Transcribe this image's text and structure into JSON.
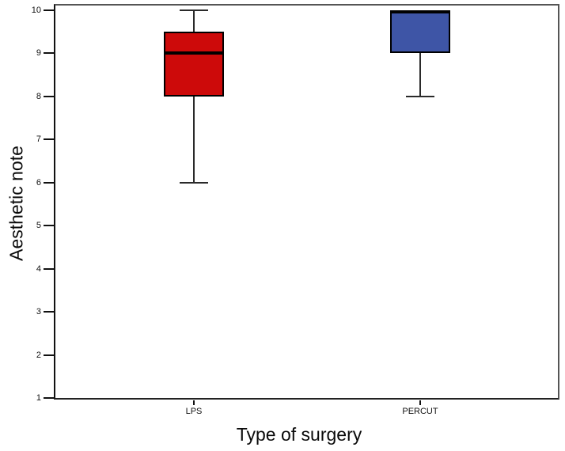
{
  "chart_data": {
    "type": "boxplot",
    "title": "",
    "xlabel": "Type of surgery",
    "ylabel": "Aesthetic note",
    "categories": [
      "LPS",
      "PERCUT"
    ],
    "y_ticks": [
      1,
      2,
      3,
      4,
      5,
      6,
      7,
      8,
      9,
      10
    ],
    "ylim": [
      1,
      10
    ],
    "grid": false,
    "legend": "none",
    "series": [
      {
        "name": "LPS",
        "min": 6,
        "q1": 8,
        "median": 9,
        "q3": 9.5,
        "max": 10,
        "color": "#cd0a0a"
      },
      {
        "name": "PERCUT",
        "min": 8,
        "q1": 9,
        "median": 10,
        "q3": 10,
        "max": 10,
        "color": "#3e55a6"
      }
    ],
    "colors": {
      "box_border": "#000000",
      "median": "#000000",
      "whisker": "#2a2a2a",
      "axis": "#111111",
      "text": "#0a0a0a"
    }
  }
}
